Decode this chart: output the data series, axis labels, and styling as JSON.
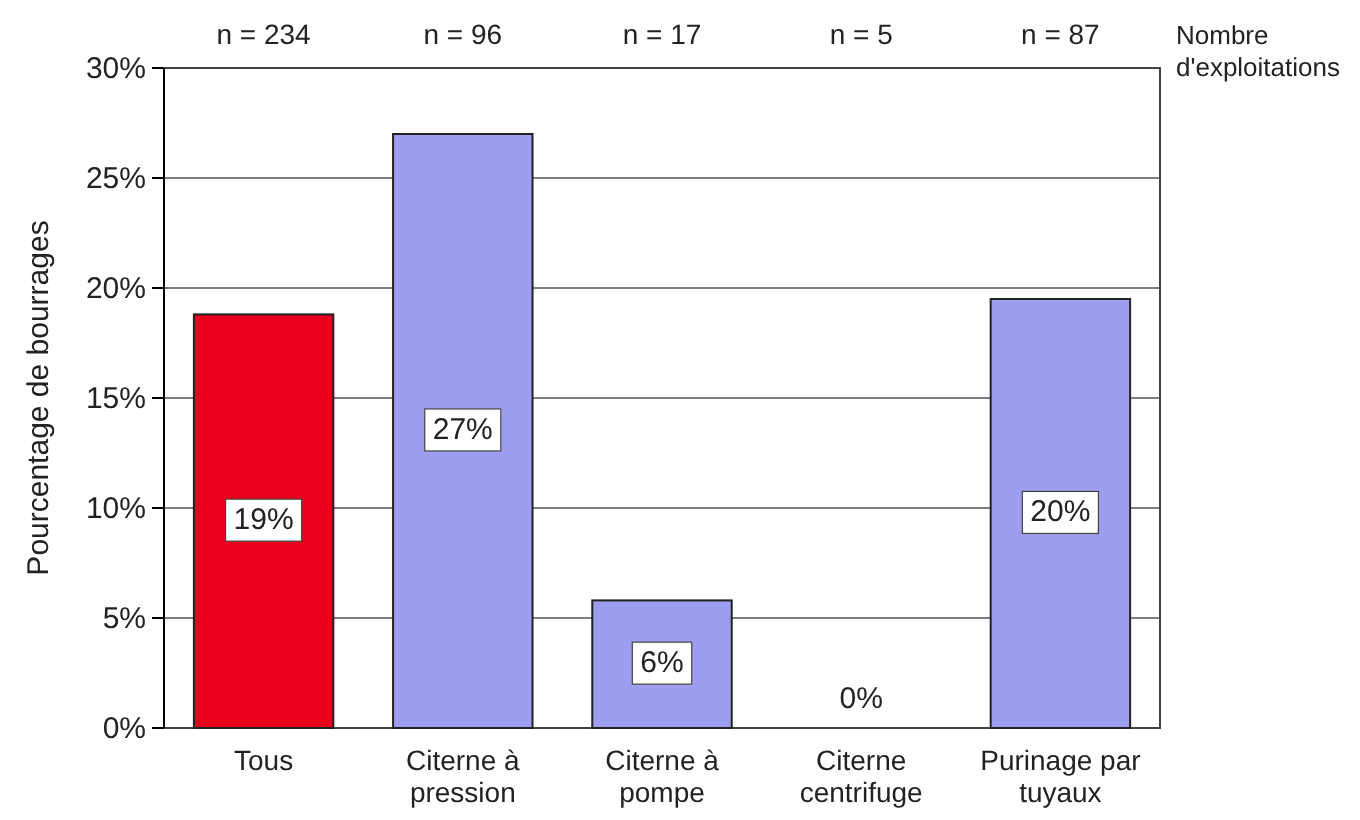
{
  "chart_data": {
    "type": "bar",
    "ylabel": "Pourcentage de bourrages",
    "categories": [
      "Tous",
      "Citerne à pression",
      "Citerne à pompe",
      "Citerne centrifuge",
      "Purinage par tuyaux"
    ],
    "values": [
      18.8,
      27,
      5.8,
      0,
      19.5
    ],
    "colors": [
      "#e8001c",
      "#9e9ef0",
      "#9e9ef0",
      "#9e9ef0",
      "#9e9ef0"
    ],
    "value_labels": [
      "19%",
      "27%",
      "6%",
      "0%",
      "20%"
    ],
    "ylim": [
      0,
      30
    ],
    "yticks": [
      {
        "value": 0,
        "label": "0%"
      },
      {
        "value": 5,
        "label": "5%"
      },
      {
        "value": 10,
        "label": "10%"
      },
      {
        "value": 15,
        "label": "15%"
      },
      {
        "value": 20,
        "label": "20%"
      },
      {
        "value": 25,
        "label": "25%"
      },
      {
        "value": 30,
        "label": "30%"
      }
    ],
    "grid": "y",
    "annotations": [
      "n = 234",
      "n = 96",
      "n = 17",
      "n = 5",
      "n = 87",
      "Nombre d'exploitations"
    ]
  }
}
